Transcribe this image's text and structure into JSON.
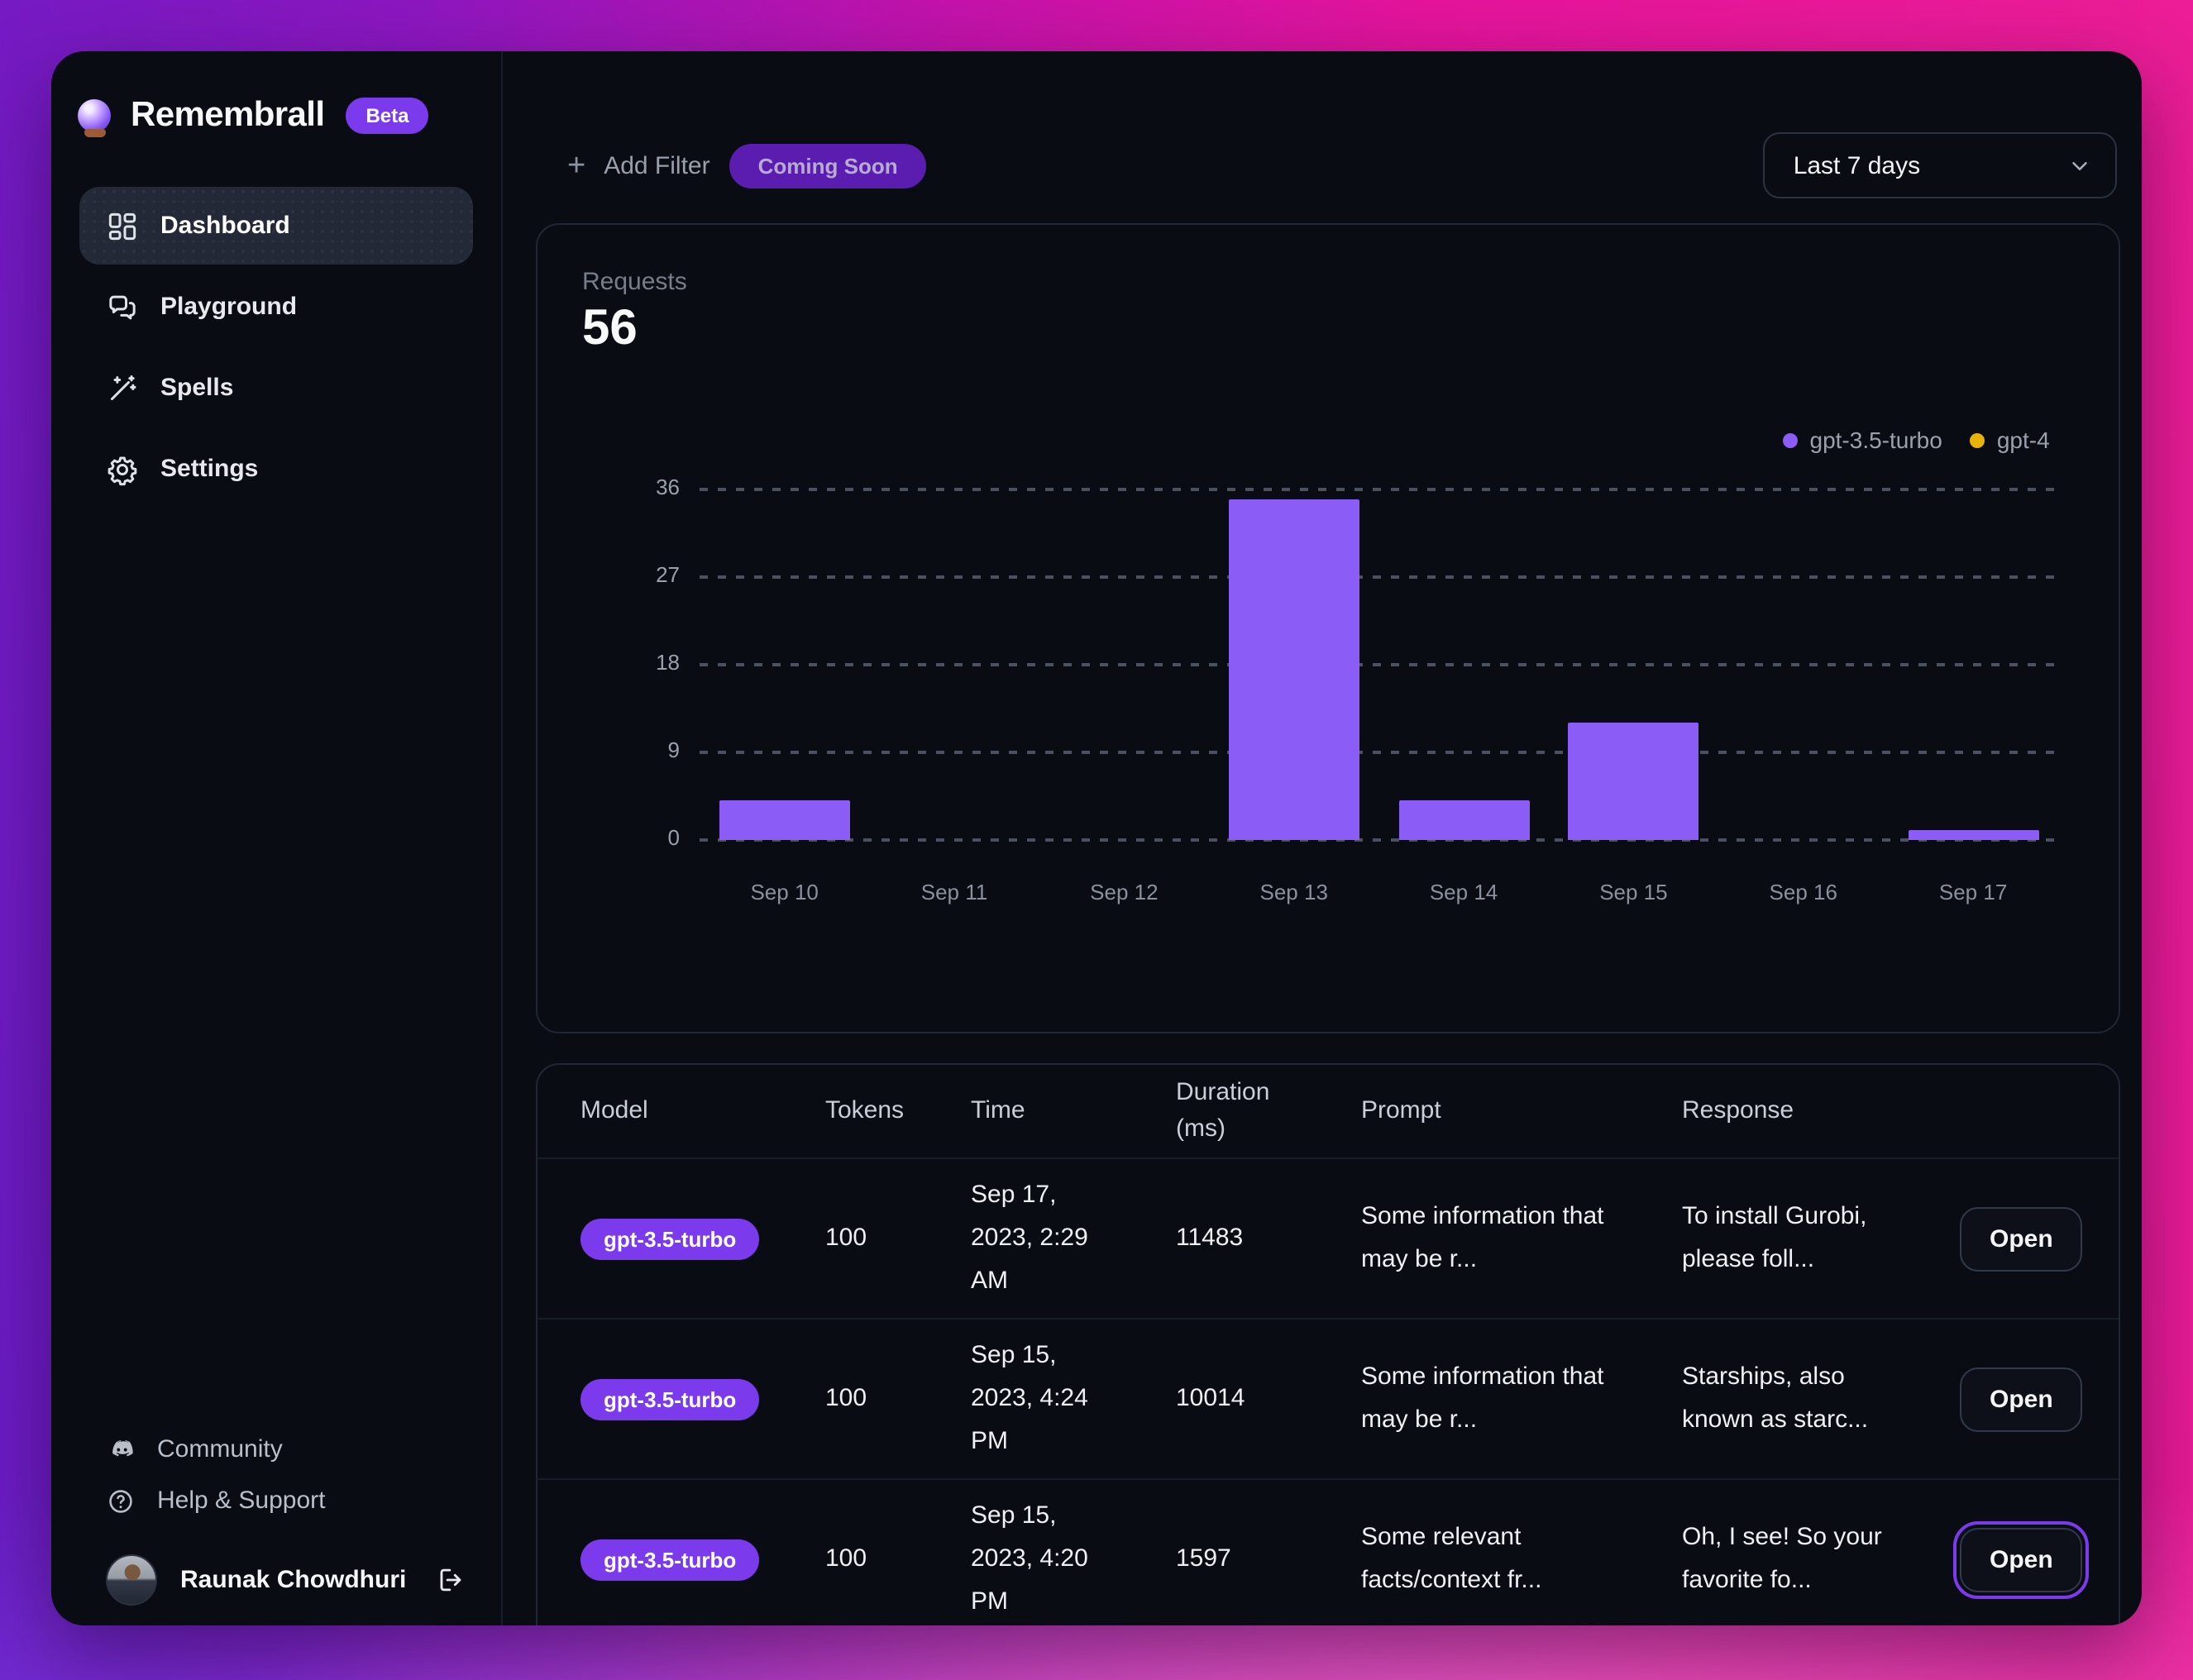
{
  "app": {
    "name": "Remembrall",
    "badge": "Beta"
  },
  "sidebar": {
    "nav": [
      {
        "label": "Dashboard",
        "icon": "dashboard-icon",
        "active": true
      },
      {
        "label": "Playground",
        "icon": "chat-icon",
        "active": false
      },
      {
        "label": "Spells",
        "icon": "wand-icon",
        "active": false
      },
      {
        "label": "Settings",
        "icon": "gear-icon",
        "active": false
      }
    ],
    "links": [
      {
        "label": "Community",
        "icon": "discord-icon"
      },
      {
        "label": "Help & Support",
        "icon": "help-icon"
      }
    ],
    "user": {
      "name": "Raunak Chowdhuri"
    }
  },
  "topbar": {
    "add_filter": "Add Filter",
    "coming_soon": "Coming Soon",
    "date_range": "Last 7 days"
  },
  "chart_data": {
    "type": "bar",
    "metric_label": "Requests",
    "metric_value": "56",
    "categories": [
      "Sep 10",
      "Sep 11",
      "Sep 12",
      "Sep 13",
      "Sep 14",
      "Sep 15",
      "Sep 16",
      "Sep 17"
    ],
    "series": [
      {
        "name": "gpt-3.5-turbo",
        "color": "#8b5cf6",
        "values": [
          4,
          0,
          0,
          35,
          4,
          12,
          0,
          1
        ]
      },
      {
        "name": "gpt-4",
        "color": "#eab308",
        "values": [
          0,
          0,
          0,
          0,
          0,
          0,
          0,
          0
        ]
      }
    ],
    "yticks": [
      36,
      27,
      18,
      9,
      0
    ],
    "ylim": [
      0,
      36
    ],
    "grid": "dashed-horizontal",
    "legend_position": "top-right"
  },
  "table": {
    "headers": [
      "Model",
      "Tokens",
      "Time",
      "Duration\n(ms)",
      "Prompt",
      "Response"
    ],
    "rows": [
      {
        "model": "gpt-3.5-turbo",
        "tokens": "100",
        "time": "Sep 17,\n2023, 2:29\nAM",
        "duration": "11483",
        "prompt": "Some information that\nmay be r...",
        "response": "To install Gurobi,\nplease foll...",
        "action": "Open",
        "focused": false
      },
      {
        "model": "gpt-3.5-turbo",
        "tokens": "100",
        "time": "Sep 15,\n2023, 4:24\nPM",
        "duration": "10014",
        "prompt": "Some information that\nmay be r...",
        "response": "Starships, also\nknown as starc...",
        "action": "Open",
        "focused": false
      },
      {
        "model": "gpt-3.5-turbo",
        "tokens": "100",
        "time": "Sep 15,\n2023, 4:20\nPM",
        "duration": "1597",
        "prompt": "Some relevant\nfacts/context fr...",
        "response": "Oh, I see! So your\nfavorite fo...",
        "action": "Open",
        "focused": true
      }
    ]
  },
  "colors": {
    "accent": "#7c3aed",
    "bar": "#8b5cf6",
    "gpt4": "#eab308",
    "window_bg": "#0a0c13",
    "gradient_purple": "#6a1cc6",
    "gradient_pink": "#ec1d96"
  }
}
